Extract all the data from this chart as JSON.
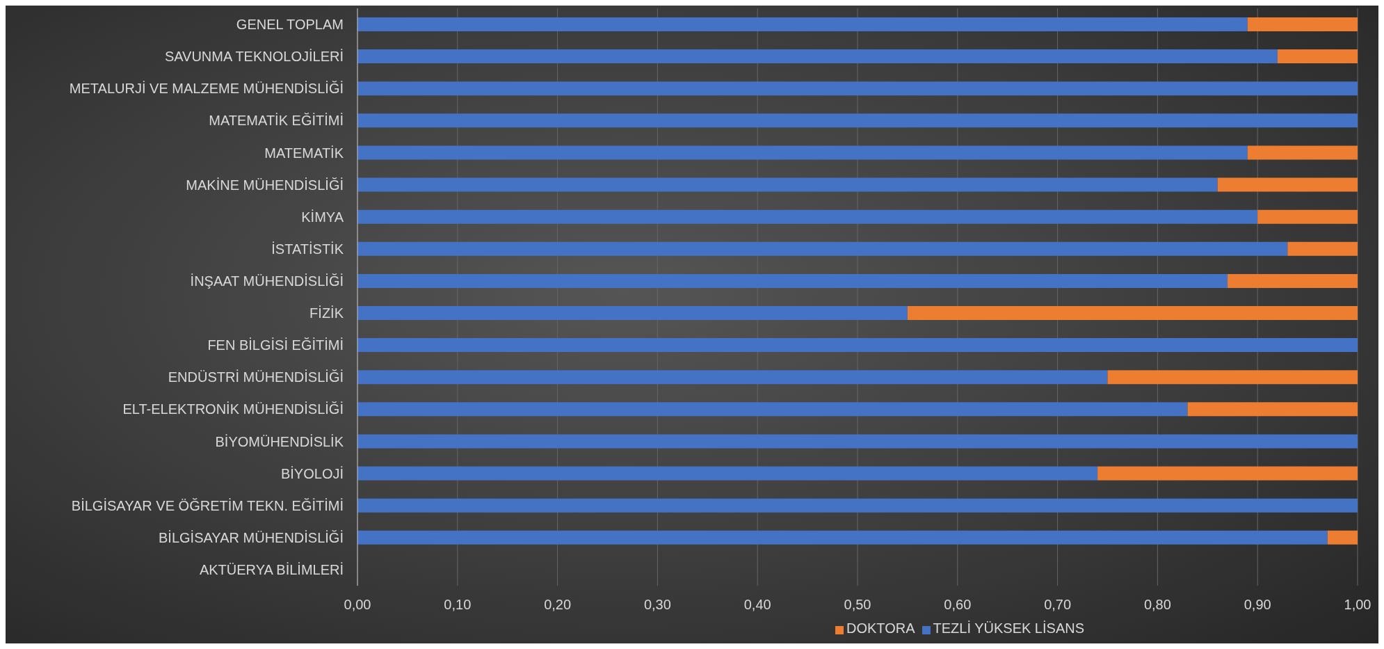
{
  "chart_data": {
    "type": "bar",
    "orientation": "horizontal",
    "stacked": true,
    "categories": [
      "GENEL TOPLAM",
      "SAVUNMA TEKNOLOJİLERİ",
      "METALURJİ VE MALZEME MÜHENDİSLİĞİ",
      "MATEMATİK EĞİTİMİ",
      "MATEMATİK",
      "MAKİNE MÜHENDİSLİĞİ",
      "KİMYA",
      "İSTATİSTİK",
      "İNŞAAT MÜHENDİSLİĞİ",
      "FİZİK",
      "FEN BİLGİSİ EĞİTİMİ",
      "ENDÜSTRİ MÜHENDİSLİĞİ",
      "ELT-ELEKTRONİK MÜHENDİSLİĞİ",
      "BİYOMÜHENDİSLİK",
      "BİYOLOJİ",
      "BİLGİSAYAR VE ÖĞRETİM TEKN. EĞİTİMİ",
      "BİLGİSAYAR MÜHENDİSLİĞİ",
      "AKTÜERYA BİLİMLERİ"
    ],
    "series": [
      {
        "name": "TEZLİ YÜKSEK LİSANS",
        "color": "#4472c4",
        "values": [
          0.89,
          0.92,
          1,
          1,
          0.89,
          0.86,
          0.9,
          0.93,
          0.87,
          0.55,
          1,
          0.75,
          0.83,
          1,
          0.74,
          1,
          0.97,
          null
        ]
      },
      {
        "name": "DOKTORA",
        "color": "#ed7d31",
        "values": [
          0.11,
          0.08,
          0,
          0,
          0.11,
          0.14,
          0.1,
          0.07,
          0.13,
          0.45,
          0,
          0.25,
          0.17,
          0,
          0.26,
          0,
          0.03,
          null
        ]
      }
    ],
    "xlim": [
      0,
      1
    ],
    "xticks": [
      {
        "value": 0,
        "label": "0,00"
      },
      {
        "value": 0.1,
        "label": "0,10"
      },
      {
        "value": 0.2,
        "label": "0,20"
      },
      {
        "value": 0.3,
        "label": "0,30"
      },
      {
        "value": 0.4,
        "label": "0,40"
      },
      {
        "value": 0.5,
        "label": "0,50"
      },
      {
        "value": 0.6,
        "label": "0,60"
      },
      {
        "value": 0.7,
        "label": "0,70"
      },
      {
        "value": 0.8,
        "label": "0,80"
      },
      {
        "value": 0.9,
        "label": "0,90"
      },
      {
        "value": 1,
        "label": "1,00"
      }
    ],
    "grid": "x",
    "legend": "bottom"
  }
}
